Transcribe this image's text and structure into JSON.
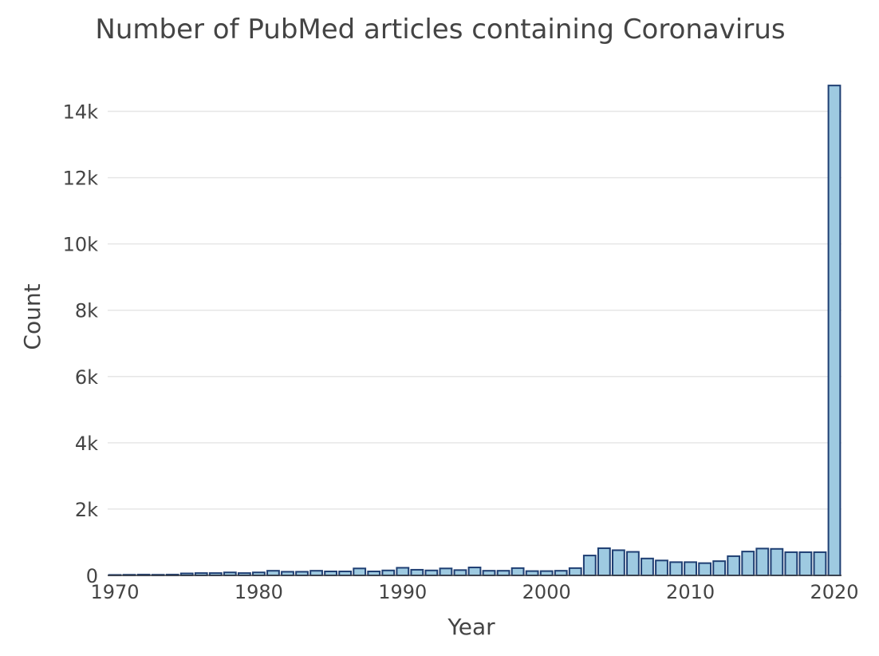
{
  "chart_data": {
    "type": "bar",
    "title": "Number of PubMed articles containing Coronavirus",
    "xlabel": "Year",
    "ylabel": "Count",
    "x": [
      1970,
      1971,
      1972,
      1973,
      1974,
      1975,
      1976,
      1977,
      1978,
      1979,
      1980,
      1981,
      1982,
      1983,
      1984,
      1985,
      1986,
      1987,
      1988,
      1989,
      1990,
      1991,
      1992,
      1993,
      1994,
      1995,
      1996,
      1997,
      1998,
      1999,
      2000,
      2001,
      2002,
      2003,
      2004,
      2005,
      2006,
      2007,
      2008,
      2009,
      2010,
      2011,
      2012,
      2013,
      2014,
      2015,
      2016,
      2017,
      2018,
      2019,
      2020
    ],
    "values": [
      15,
      20,
      25,
      20,
      25,
      60,
      70,
      70,
      90,
      70,
      90,
      140,
      110,
      110,
      140,
      120,
      120,
      210,
      120,
      150,
      230,
      170,
      150,
      210,
      160,
      240,
      140,
      140,
      220,
      130,
      130,
      140,
      220,
      600,
      820,
      760,
      710,
      510,
      450,
      400,
      400,
      370,
      430,
      580,
      720,
      810,
      800,
      700,
      700,
      700,
      14780
    ],
    "xlim": [
      1969.5,
      2020.5
    ],
    "ylim": [
      0,
      15000
    ],
    "x_ticks": [
      1970,
      1980,
      1990,
      2000,
      2010,
      2020
    ],
    "x_tick_labels": [
      "1970",
      "1980",
      "1990",
      "2000",
      "2010",
      "2020"
    ],
    "y_ticks": [
      0,
      2000,
      4000,
      6000,
      8000,
      10000,
      12000,
      14000
    ],
    "y_tick_labels": [
      "0",
      "2k",
      "4k",
      "6k",
      "8k",
      "10k",
      "12k",
      "14k"
    ],
    "grid": true,
    "colors": {
      "bar_fill": "#9ecae1",
      "bar_stroke": "#1f3f73",
      "grid": "#e6e6e6",
      "text": "#444444"
    }
  }
}
